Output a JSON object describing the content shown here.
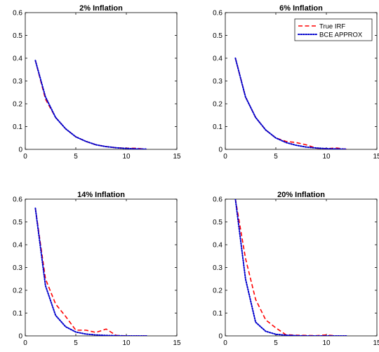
{
  "chart_data": [
    {
      "type": "line",
      "title": "2% Inflation",
      "xlim": [
        0,
        15
      ],
      "ylim": [
        0,
        0.6
      ],
      "xticks": [
        0,
        5,
        10,
        15
      ],
      "yticks": [
        0,
        0.1,
        0.2,
        0.3,
        0.4,
        0.5,
        0.6
      ],
      "grid": false,
      "legend": null,
      "series": [
        {
          "name": "True IRF",
          "style": "dashed",
          "color": "#ff0000",
          "x": [
            1,
            2,
            3,
            4,
            5,
            6,
            7,
            8,
            9,
            10,
            11,
            12
          ],
          "y": [
            0.39,
            0.22,
            0.14,
            0.09,
            0.055,
            0.035,
            0.02,
            0.012,
            0.007,
            0.005,
            0.005,
            0.0
          ]
        },
        {
          "name": "BCE APPROX",
          "style": "dotted",
          "color": "#0000cc",
          "x": [
            1,
            2,
            3,
            4,
            5,
            6,
            7,
            8,
            9,
            10,
            11,
            12
          ],
          "y": [
            0.39,
            0.23,
            0.14,
            0.09,
            0.055,
            0.035,
            0.02,
            0.012,
            0.007,
            0.004,
            0.002,
            0.001
          ]
        }
      ]
    },
    {
      "type": "line",
      "title": "6% Inflation",
      "xlim": [
        0,
        15
      ],
      "ylim": [
        0,
        0.6
      ],
      "xticks": [
        0,
        5,
        10,
        15
      ],
      "yticks": [
        0,
        0.1,
        0.2,
        0.3,
        0.4,
        0.5,
        0.6
      ],
      "grid": false,
      "legend": "top-right",
      "series": [
        {
          "name": "True IRF",
          "style": "dashed",
          "color": "#ff0000",
          "x": [
            1,
            2,
            3,
            4,
            5,
            6,
            7,
            8,
            9,
            10,
            11,
            12
          ],
          "y": [
            0.4,
            0.23,
            0.14,
            0.085,
            0.05,
            0.035,
            0.03,
            0.02,
            0.005,
            0.003,
            0.006,
            0.0
          ]
        },
        {
          "name": "BCE APPROX",
          "style": "dotted",
          "color": "#0000cc",
          "x": [
            1,
            2,
            3,
            4,
            5,
            6,
            7,
            8,
            9,
            10,
            11,
            12
          ],
          "y": [
            0.4,
            0.23,
            0.14,
            0.085,
            0.05,
            0.03,
            0.018,
            0.01,
            0.006,
            0.003,
            0.002,
            0.001
          ]
        }
      ]
    },
    {
      "type": "line",
      "title": "14% Inflation",
      "xlim": [
        0,
        15
      ],
      "ylim": [
        0,
        0.6
      ],
      "xticks": [
        0,
        5,
        10,
        15
      ],
      "yticks": [
        0,
        0.1,
        0.2,
        0.3,
        0.4,
        0.5,
        0.6
      ],
      "grid": false,
      "legend": null,
      "series": [
        {
          "name": "True IRF",
          "style": "dashed",
          "color": "#ff0000",
          "x": [
            1,
            2,
            3,
            4,
            5,
            6,
            7,
            8,
            9,
            10,
            11,
            12
          ],
          "y": [
            0.56,
            0.25,
            0.14,
            0.085,
            0.025,
            0.025,
            0.015,
            0.03,
            0.002,
            0.0,
            0.0,
            0.0
          ]
        },
        {
          "name": "BCE APPROX",
          "style": "dotted",
          "color": "#0000cc",
          "x": [
            1,
            2,
            3,
            4,
            5,
            6,
            7,
            8,
            9,
            10,
            11,
            12
          ],
          "y": [
            0.56,
            0.22,
            0.09,
            0.04,
            0.017,
            0.008,
            0.004,
            0.002,
            0.001,
            0.0,
            0.0,
            0.0
          ]
        }
      ]
    },
    {
      "type": "line",
      "title": "20% Inflation",
      "xlim": [
        0,
        15
      ],
      "ylim": [
        0,
        0.6
      ],
      "xticks": [
        0,
        5,
        10,
        15
      ],
      "yticks": [
        0,
        0.1,
        0.2,
        0.3,
        0.4,
        0.5,
        0.6
      ],
      "grid": false,
      "legend": null,
      "series": [
        {
          "name": "True IRF",
          "style": "dashed",
          "color": "#ff0000",
          "x": [
            1,
            2,
            3,
            4,
            5,
            6,
            7,
            8,
            9,
            10,
            11,
            12
          ],
          "y": [
            0.6,
            0.34,
            0.16,
            0.07,
            0.035,
            0.005,
            0.003,
            0.002,
            0.001,
            0.004,
            0.0,
            0.0
          ]
        },
        {
          "name": "BCE APPROX",
          "style": "dotted",
          "color": "#0000cc",
          "x": [
            1,
            2,
            3,
            4,
            5,
            6,
            7,
            8,
            9,
            10,
            11,
            12
          ],
          "y": [
            0.6,
            0.25,
            0.06,
            0.02,
            0.007,
            0.003,
            0.001,
            0.0,
            0.0,
            0.0,
            0.0,
            0.0
          ]
        }
      ]
    }
  ]
}
